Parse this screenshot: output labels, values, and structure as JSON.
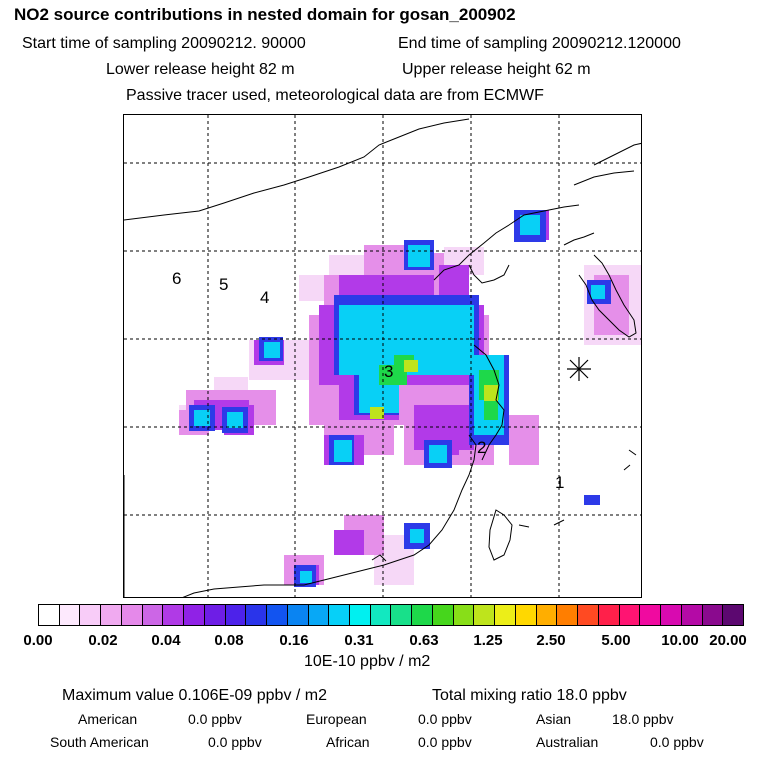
{
  "header": {
    "title": "NO2 source contributions in nested domain for gosan_200902",
    "start_time": "Start time of sampling 20090212. 90000",
    "end_time": "End time of sampling 20090212.120000",
    "lower_height": "Lower release height   82 m",
    "upper_height": "Upper release height   62 m",
    "note": "Passive tracer used, meteorological data are from ECMWF"
  },
  "map": {
    "grid": "dashed",
    "receptor": "asterisk-icon",
    "labels": [
      "1",
      "2",
      "3",
      "4",
      "5",
      "6"
    ]
  },
  "colorbar": {
    "colors": [
      "#ffffff",
      "#fde9fd",
      "#f8ccf8",
      "#f0aaf0",
      "#e589ea",
      "#cc66e6",
      "#b03ae6",
      "#9022e6",
      "#6e1ee6",
      "#4d22ea",
      "#2a34ea",
      "#1254f0",
      "#0a84f2",
      "#08a8f6",
      "#06d0f8",
      "#00f0f0",
      "#12e8c0",
      "#18e08a",
      "#1ed84a",
      "#46d61c",
      "#88de18",
      "#bee41c",
      "#ecee18",
      "#ffd800",
      "#ffae00",
      "#ff7e00",
      "#ff4a22",
      "#ff204a",
      "#ff1472",
      "#f00aa0",
      "#d80ab0",
      "#b40aa6",
      "#8a0a8e",
      "#5c0870"
    ],
    "ticks": [
      "0.00",
      "0.02",
      "0.04",
      "0.08",
      "0.16",
      "0.31",
      "0.63",
      "1.25",
      "2.50",
      "5.00",
      "10.00",
      "20.00"
    ],
    "unit": "10E-10 ppbv / m2"
  },
  "summary": {
    "maximum": "Maximum value  0.106E-09 ppbv / m2",
    "total": "Total mixing ratio       18.0 ppbv",
    "regions": [
      {
        "name": "American",
        "value": "0.0 ppbv"
      },
      {
        "name": "European",
        "value": "0.0 ppbv"
      },
      {
        "name": "Asian",
        "value": "18.0 ppbv"
      },
      {
        "name": "South American",
        "value": "0.0 ppbv"
      },
      {
        "name": "African",
        "value": "0.0 ppbv"
      },
      {
        "name": "Australian",
        "value": "0.0 ppbv"
      }
    ]
  }
}
